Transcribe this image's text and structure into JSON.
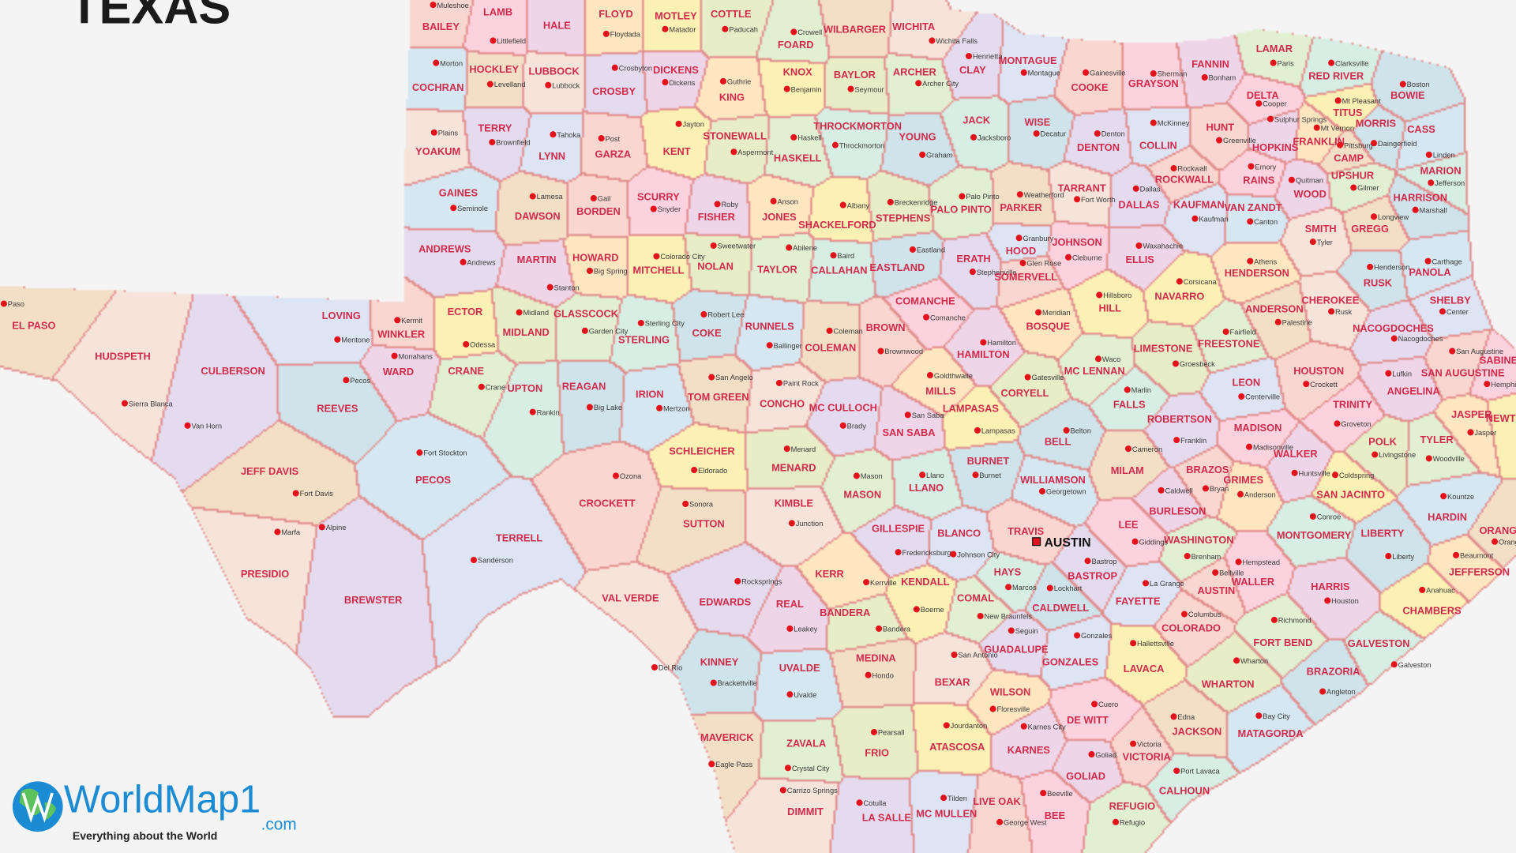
{
  "title": "TEXAS",
  "capital": "AUSTIN",
  "logo": {
    "brand": "WorldMap1",
    "suffix": ".com",
    "tagline": "Everything about the World"
  },
  "colors": {
    "county_label": "#d12b4c",
    "seat_dot": "#e5121c",
    "border": "#e28d8d",
    "background": "#f4f4f4",
    "palette": [
      "#f9d6cf",
      "#fde6c0",
      "#e2f0d2",
      "#d5e7f1",
      "#e5dbef",
      "#fbd2de",
      "#fcf1b4",
      "#d6eee4",
      "#f3dfc6",
      "#dde5f5",
      "#efd5e8",
      "#e7edc6",
      "#cfe3ea",
      "#f6e3d9"
    ]
  },
  "counties": [
    {
      "name": "BAILEY",
      "seat": "Muleshoe"
    },
    {
      "name": "LAMB",
      "seat": "Littlefield"
    },
    {
      "name": "HALE",
      "seat": ""
    },
    {
      "name": "FLOYD",
      "seat": "Floydada"
    },
    {
      "name": "MOTLEY",
      "seat": "Matador"
    },
    {
      "name": "COTTLE",
      "seat": "Paducah"
    },
    {
      "name": "FOARD",
      "seat": "Crowell"
    },
    {
      "name": "WILBARGER",
      "seat": ""
    },
    {
      "name": "WICHITA",
      "seat": "Wichita Falls"
    },
    {
      "name": "CLAY",
      "seat": "Henrietta"
    },
    {
      "name": "MONTAGUE",
      "seat": "Montague"
    },
    {
      "name": "COOKE",
      "seat": "Gainesville"
    },
    {
      "name": "GRAYSON",
      "seat": "Sherman"
    },
    {
      "name": "FANNIN",
      "seat": "Bonham"
    },
    {
      "name": "LAMAR",
      "seat": "Paris"
    },
    {
      "name": "RED RIVER",
      "seat": "Clarksville"
    },
    {
      "name": "BOWIE",
      "seat": "Boston"
    },
    {
      "name": "COCHRAN",
      "seat": "Morton"
    },
    {
      "name": "HOCKLEY",
      "seat": "Levelland"
    },
    {
      "name": "LUBBOCK",
      "seat": "Lubbock"
    },
    {
      "name": "CROSBY",
      "seat": "Crosbyton"
    },
    {
      "name": "DICKENS",
      "seat": "Dickens"
    },
    {
      "name": "KING",
      "seat": "Guthrie"
    },
    {
      "name": "KNOX",
      "seat": "Benjamin"
    },
    {
      "name": "BAYLOR",
      "seat": "Seymour"
    },
    {
      "name": "ARCHER",
      "seat": "Archer City"
    },
    {
      "name": "JACK",
      "seat": "Jacksboro"
    },
    {
      "name": "WISE",
      "seat": "Decatur"
    },
    {
      "name": "DENTON",
      "seat": "Denton"
    },
    {
      "name": "COLLIN",
      "seat": "McKinney"
    },
    {
      "name": "HUNT",
      "seat": "Greenville"
    },
    {
      "name": "DELTA",
      "seat": "Cooper"
    },
    {
      "name": "HOPKINS",
      "seat": "Sulphur Springs"
    },
    {
      "name": "FRANKLIN",
      "seat": "Mt Vernon"
    },
    {
      "name": "TITUS",
      "seat": "Mt Pleasant"
    },
    {
      "name": "MORRIS",
      "seat": "Daingerfield"
    },
    {
      "name": "CASS",
      "seat": "Linden"
    },
    {
      "name": "CAMP",
      "seat": "Pittsburg"
    },
    {
      "name": "YOAKUM",
      "seat": "Plains"
    },
    {
      "name": "TERRY",
      "seat": "Brownfield"
    },
    {
      "name": "LYNN",
      "seat": "Tahoka"
    },
    {
      "name": "GARZA",
      "seat": "Post"
    },
    {
      "name": "KENT",
      "seat": "Jayton"
    },
    {
      "name": "STONEWALL",
      "seat": "Aspermont"
    },
    {
      "name": "HASKELL",
      "seat": "Haskell"
    },
    {
      "name": "THROCKMORTON",
      "seat": "Throckmorton"
    },
    {
      "name": "YOUNG",
      "seat": "Graham"
    },
    {
      "name": "GAINES",
      "seat": "Seminole"
    },
    {
      "name": "DAWSON",
      "seat": "Lamesa"
    },
    {
      "name": "BORDEN",
      "seat": "Gail"
    },
    {
      "name": "SCURRY",
      "seat": "Snyder"
    },
    {
      "name": "FISHER",
      "seat": "Roby"
    },
    {
      "name": "JONES",
      "seat": "Anson"
    },
    {
      "name": "SHACKELFORD",
      "seat": "Albany"
    },
    {
      "name": "STEPHENS",
      "seat": "Breckenridge"
    },
    {
      "name": "PALO PINTO",
      "seat": "Palo Pinto"
    },
    {
      "name": "PARKER",
      "seat": "Weatherford"
    },
    {
      "name": "TARRANT",
      "seat": "Fort Worth"
    },
    {
      "name": "DALLAS",
      "seat": "Dallas"
    },
    {
      "name": "KAUFMAN",
      "seat": "Kaufman"
    },
    {
      "name": "ROCKWALL",
      "seat": "Rockwall"
    },
    {
      "name": "RAINS",
      "seat": "Emory"
    },
    {
      "name": "WOOD",
      "seat": "Quitman"
    },
    {
      "name": "UPSHUR",
      "seat": "Gilmer"
    },
    {
      "name": "MARION",
      "seat": "Jefferson"
    },
    {
      "name": "HARRISON",
      "seat": "Marshall"
    },
    {
      "name": "VAN ZANDT",
      "seat": "Canton"
    },
    {
      "name": "GREGG",
      "seat": "Longview"
    },
    {
      "name": "SMITH",
      "seat": "Tyler"
    },
    {
      "name": "ANDREWS",
      "seat": "Andrews"
    },
    {
      "name": "MARTIN",
      "seat": "Stanton"
    },
    {
      "name": "HOWARD",
      "seat": "Big Spring"
    },
    {
      "name": "MITCHELL",
      "seat": "Colorado City"
    },
    {
      "name": "NOLAN",
      "seat": "Sweetwater"
    },
    {
      "name": "TAYLOR",
      "seat": "Abilene"
    },
    {
      "name": "CALLAHAN",
      "seat": "Baird"
    },
    {
      "name": "EASTLAND",
      "seat": "Eastland"
    },
    {
      "name": "ERATH",
      "seat": "Stephenville"
    },
    {
      "name": "HOOD",
      "seat": "Granbury"
    },
    {
      "name": "SOMERVELL",
      "seat": "Glen Rose"
    },
    {
      "name": "JOHNSON",
      "seat": "Cleburne"
    },
    {
      "name": "ELLIS",
      "seat": "Waxahachie"
    },
    {
      "name": "HENDERSON",
      "seat": "Athens"
    },
    {
      "name": "NAVARRO",
      "seat": "Corsicana"
    },
    {
      "name": "RUSK",
      "seat": "Henderson"
    },
    {
      "name": "PANOLA",
      "seat": "Carthage"
    },
    {
      "name": "EL PASO",
      "seat": "Paso"
    },
    {
      "name": "HUDSPETH",
      "seat": "Sierra Blanca"
    },
    {
      "name": "CULBERSON",
      "seat": "Van Horn"
    },
    {
      "name": "LOVING",
      "seat": "Mentone"
    },
    {
      "name": "WINKLER",
      "seat": "Kermit"
    },
    {
      "name": "ECTOR",
      "seat": "Odessa"
    },
    {
      "name": "MIDLAND",
      "seat": "Midland"
    },
    {
      "name": "GLASSCOCK",
      "seat": "Garden City"
    },
    {
      "name": "STERLING",
      "seat": "Sterling City"
    },
    {
      "name": "COKE",
      "seat": "Robert Lee"
    },
    {
      "name": "RUNNELS",
      "seat": "Ballinger"
    },
    {
      "name": "COLEMAN",
      "seat": "Coleman"
    },
    {
      "name": "BROWN",
      "seat": "Brownwood"
    },
    {
      "name": "COMANCHE",
      "seat": "Comanche"
    },
    {
      "name": "HAMILTON",
      "seat": "Hamilton"
    },
    {
      "name": "BOSQUE",
      "seat": "Meridian"
    },
    {
      "name": "HILL",
      "seat": "Hillsboro"
    },
    {
      "name": "LIMESTONE",
      "seat": "Groesbeck"
    },
    {
      "name": "FREESTONE",
      "seat": "Fairfield"
    },
    {
      "name": "ANDERSON",
      "seat": "Palestine"
    },
    {
      "name": "CHEROKEE",
      "seat": "Rusk"
    },
    {
      "name": "NACOGDOCHES",
      "seat": "Nacogdoches"
    },
    {
      "name": "SHELBY",
      "seat": "Center"
    },
    {
      "name": "SAN AUGUSTINE",
      "seat": "San Augustine"
    },
    {
      "name": "SABINE",
      "seat": "Hemphill"
    },
    {
      "name": "WARD",
      "seat": "Monahans"
    },
    {
      "name": "CRANE",
      "seat": "Crane"
    },
    {
      "name": "UPTON",
      "seat": "Rankin"
    },
    {
      "name": "REAGAN",
      "seat": "Big Lake"
    },
    {
      "name": "IRION",
      "seat": "Mertzon"
    },
    {
      "name": "TOM GREEN",
      "seat": "San Angelo"
    },
    {
      "name": "CONCHO",
      "seat": "Paint Rock"
    },
    {
      "name": "MC CULLOCH",
      "seat": "Brady"
    },
    {
      "name": "SAN SABA",
      "seat": "San Saba"
    },
    {
      "name": "MILLS",
      "seat": "Goldthwaite"
    },
    {
      "name": "LAMPASAS",
      "seat": "Lampasas"
    },
    {
      "name": "CORYELL",
      "seat": "Gatesville"
    },
    {
      "name": "MC LENNAN",
      "seat": "Waco"
    },
    {
      "name": "FALLS",
      "seat": "Marlin"
    },
    {
      "name": "BELL",
      "seat": "Belton"
    },
    {
      "name": "ROBERTSON",
      "seat": "Franklin"
    },
    {
      "name": "LEON",
      "seat": "Centerville"
    },
    {
      "name": "HOUSTON",
      "seat": "Crockett"
    },
    {
      "name": "TRINITY",
      "seat": "Groveton"
    },
    {
      "name": "ANGELINA",
      "seat": "Lufkin"
    },
    {
      "name": "JASPER",
      "seat": "Jasper"
    },
    {
      "name": "NEWTON",
      "seat": ""
    },
    {
      "name": "REEVES",
      "seat": "Pecos"
    },
    {
      "name": "PECOS",
      "seat": "Fort Stockton"
    },
    {
      "name": "JEFF DAVIS",
      "seat": "Fort Davis"
    },
    {
      "name": "PRESIDIO",
      "seat": "Marfa"
    },
    {
      "name": "BREWSTER",
      "seat": "Alpine"
    },
    {
      "name": "TERRELL",
      "seat": "Sanderson"
    },
    {
      "name": "CROCKETT",
      "seat": "Ozona"
    },
    {
      "name": "SCHLEICHER",
      "seat": "Eldorado"
    },
    {
      "name": "MENARD",
      "seat": "Menard"
    },
    {
      "name": "MASON",
      "seat": "Mason"
    },
    {
      "name": "LLANO",
      "seat": "Llano"
    },
    {
      "name": "BURNET",
      "seat": "Burnet"
    },
    {
      "name": "WILLIAMSON",
      "seat": "Georgetown"
    },
    {
      "name": "MILAM",
      "seat": "Cameron"
    },
    {
      "name": "BRAZOS",
      "seat": "Bryan"
    },
    {
      "name": "MADISON",
      "seat": "Madisonville"
    },
    {
      "name": "WALKER",
      "seat": "Huntsville"
    },
    {
      "name": "GRIMES",
      "seat": "Anderson"
    },
    {
      "name": "SAN JACINTO",
      "seat": "Coldspring"
    },
    {
      "name": "POLK",
      "seat": "Livingstone"
    },
    {
      "name": "TYLER",
      "seat": "Woodville"
    },
    {
      "name": "SUTTON",
      "seat": "Sonora"
    },
    {
      "name": "KIMBLE",
      "seat": "Junction"
    },
    {
      "name": "GILLESPIE",
      "seat": "Fredericksburg"
    },
    {
      "name": "BLANCO",
      "seat": "Johnson City"
    },
    {
      "name": "TRAVIS",
      "seat": ""
    },
    {
      "name": "LEE",
      "seat": "Giddings"
    },
    {
      "name": "BURLESON",
      "seat": "Caldwell"
    },
    {
      "name": "WASHINGTON",
      "seat": "Brenham"
    },
    {
      "name": "MONTGOMERY",
      "seat": "Conroe"
    },
    {
      "name": "LIBERTY",
      "seat": "Liberty"
    },
    {
      "name": "HARDIN",
      "seat": "Kountze"
    },
    {
      "name": "ORANGE",
      "seat": "Orange"
    },
    {
      "name": "VAL VERDE",
      "seat": "Del Rio"
    },
    {
      "name": "EDWARDS",
      "seat": "Rocksprings"
    },
    {
      "name": "REAL",
      "seat": "Leakey"
    },
    {
      "name": "KERR",
      "seat": "Kerrville"
    },
    {
      "name": "KENDALL",
      "seat": "Boerne"
    },
    {
      "name": "BANDERA",
      "seat": "Bandera"
    },
    {
      "name": "COMAL",
      "seat": "New Braunfels"
    },
    {
      "name": "HAYS",
      "seat": "Marcos"
    },
    {
      "name": "CALDWELL",
      "seat": "Lockhart"
    },
    {
      "name": "BASTROP",
      "seat": "Bastrop"
    },
    {
      "name": "FAYETTE",
      "seat": "La Grange"
    },
    {
      "name": "AUSTIN",
      "seat": "Bellville"
    },
    {
      "name": "WALLER",
      "seat": "Hempstead"
    },
    {
      "name": "HARRIS",
      "seat": "Houston"
    },
    {
      "name": "JEFFERSON",
      "seat": "Beaumont"
    },
    {
      "name": "CHAMBERS",
      "seat": "Anahuac"
    },
    {
      "name": "KINNEY",
      "seat": "Brackettville"
    },
    {
      "name": "UVALDE",
      "seat": "Uvalde"
    },
    {
      "name": "MEDINA",
      "seat": "Hondo"
    },
    {
      "name": "BEXAR",
      "seat": "San Antonio"
    },
    {
      "name": "GUADALUPE",
      "seat": "Seguin"
    },
    {
      "name": "GONZALES",
      "seat": "Gonzales"
    },
    {
      "name": "COLORADO",
      "seat": "Columbus"
    },
    {
      "name": "LAVACA",
      "seat": "Hallettsville"
    },
    {
      "name": "WHARTON",
      "seat": "Wharton"
    },
    {
      "name": "FORT BEND",
      "seat": "Richmond"
    },
    {
      "name": "GALVESTON",
      "seat": "Galveston"
    },
    {
      "name": "BRAZORIA",
      "seat": "Angleton"
    },
    {
      "name": "MATAGORDA",
      "seat": "Bay City"
    },
    {
      "name": "JACKSON",
      "seat": "Edna"
    },
    {
      "name": "VICTORIA",
      "seat": "Victoria"
    },
    {
      "name": "DE WITT",
      "seat": "Cuero"
    },
    {
      "name": "KARNES",
      "seat": "Karnes City"
    },
    {
      "name": "WILSON",
      "seat": "Floresville"
    },
    {
      "name": "ATASCOSA",
      "seat": "Jourdanton"
    },
    {
      "name": "FRIO",
      "seat": "Pearsall"
    },
    {
      "name": "ZAVALA",
      "seat": "Crystal City"
    },
    {
      "name": "MAVERICK",
      "seat": "Eagle Pass"
    },
    {
      "name": "DIMMIT",
      "seat": "Carrizo Springs"
    },
    {
      "name": "LA SALLE",
      "seat": "Cotulla"
    },
    {
      "name": "MC MULLEN",
      "seat": "Tilden"
    },
    {
      "name": "LIVE OAK",
      "seat": "George West"
    },
    {
      "name": "BEE",
      "seat": "Beeville"
    },
    {
      "name": "GOLIAD",
      "seat": "Goliad"
    },
    {
      "name": "REFUGIO",
      "seat": "Refugio"
    },
    {
      "name": "CALHOUN",
      "seat": "Port Lavaca"
    }
  ]
}
